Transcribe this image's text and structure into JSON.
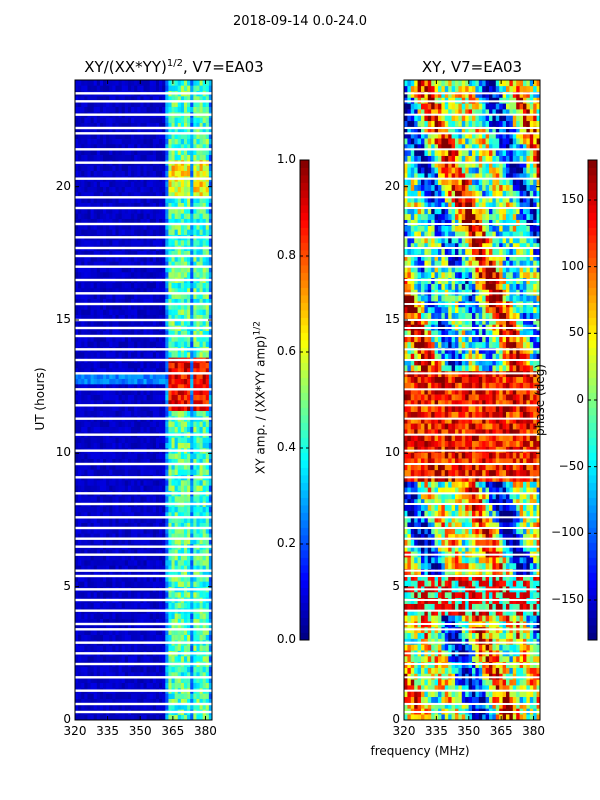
{
  "chart_data": [
    {
      "type": "heatmap",
      "suptitle": "2018-09-14 0.0-24.0",
      "title": "XY/(XX*YY)^{1/2}, V7=EA03",
      "title_base": "XY/(XX*YY)",
      "title_sup": "1/2",
      "title_tail": ", V7=EA03",
      "xlabel": "",
      "ylabel": "UT (hours)",
      "xlim": [
        320,
        383
      ],
      "ylim": [
        0,
        24
      ],
      "xticks": [
        320,
        335,
        350,
        365,
        380
      ],
      "yticks": [
        0,
        5,
        10,
        15,
        20
      ],
      "colorbar": {
        "label": "XY amp. / (XX*YY amp)^{1/2}",
        "label_base": "XY amp. / (XX*YY amp)",
        "label_sup": "1/2",
        "range": [
          0.0,
          1.0
        ],
        "ticks": [
          "0.0",
          "0.2",
          "0.4",
          "0.6",
          "0.8",
          "1.0"
        ]
      }
    },
    {
      "type": "heatmap",
      "title": "XY, V7=EA03",
      "xlabel": "frequency (MHz)",
      "ylabel": "",
      "xlim": [
        320,
        383
      ],
      "ylim": [
        0,
        24
      ],
      "xticks": [
        320,
        335,
        350,
        365,
        380
      ],
      "yticks": [
        0,
        5,
        10,
        15,
        20
      ],
      "colorbar": {
        "label": "phase (deg)",
        "range": [
          -180,
          180
        ],
        "ticks": [
          "150",
          "100",
          "50",
          "0",
          "−50",
          "−100",
          "−150"
        ]
      }
    }
  ]
}
